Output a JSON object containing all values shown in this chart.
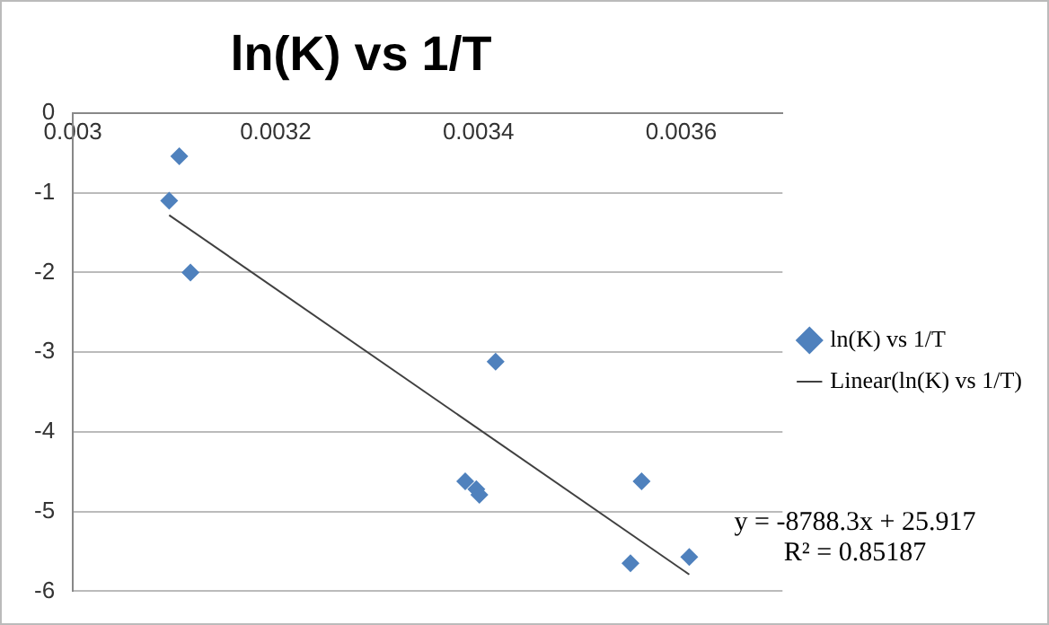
{
  "chart_data": {
    "type": "scatter",
    "title": "ln(K) vs 1/T",
    "series": [
      {
        "name": "ln(K) vs 1/T",
        "color": "#4f81bd",
        "marker": "diamond",
        "x": [
          0.003105,
          0.003095,
          0.003116,
          0.003417,
          0.003387,
          0.003398,
          0.003401,
          0.003561,
          0.00355,
          0.003608
        ],
        "values": [
          -0.54,
          -1.1,
          -2.0,
          -3.12,
          -4.62,
          -4.72,
          -4.79,
          -4.62,
          -5.65,
          -5.57
        ]
      },
      {
        "name": "Linear(ln(K) vs 1/T)",
        "type": "line",
        "color": "#404040",
        "marker": "none",
        "x": [
          0.003095,
          0.003608
        ],
        "values": [
          -1.28,
          -5.79
        ]
      }
    ],
    "xlim": [
      0.003,
      0.0037
    ],
    "xticks": [
      0.003,
      0.0032,
      0.0034,
      0.0036
    ],
    "ylim": [
      -6,
      0
    ],
    "yticks": [
      0,
      -1,
      -2,
      -3,
      -4,
      -5,
      -6
    ],
    "grid": "y",
    "legend": "right",
    "annotations": [
      "y = -8788.3x + 25.917",
      "R² = 0.85187"
    ]
  }
}
